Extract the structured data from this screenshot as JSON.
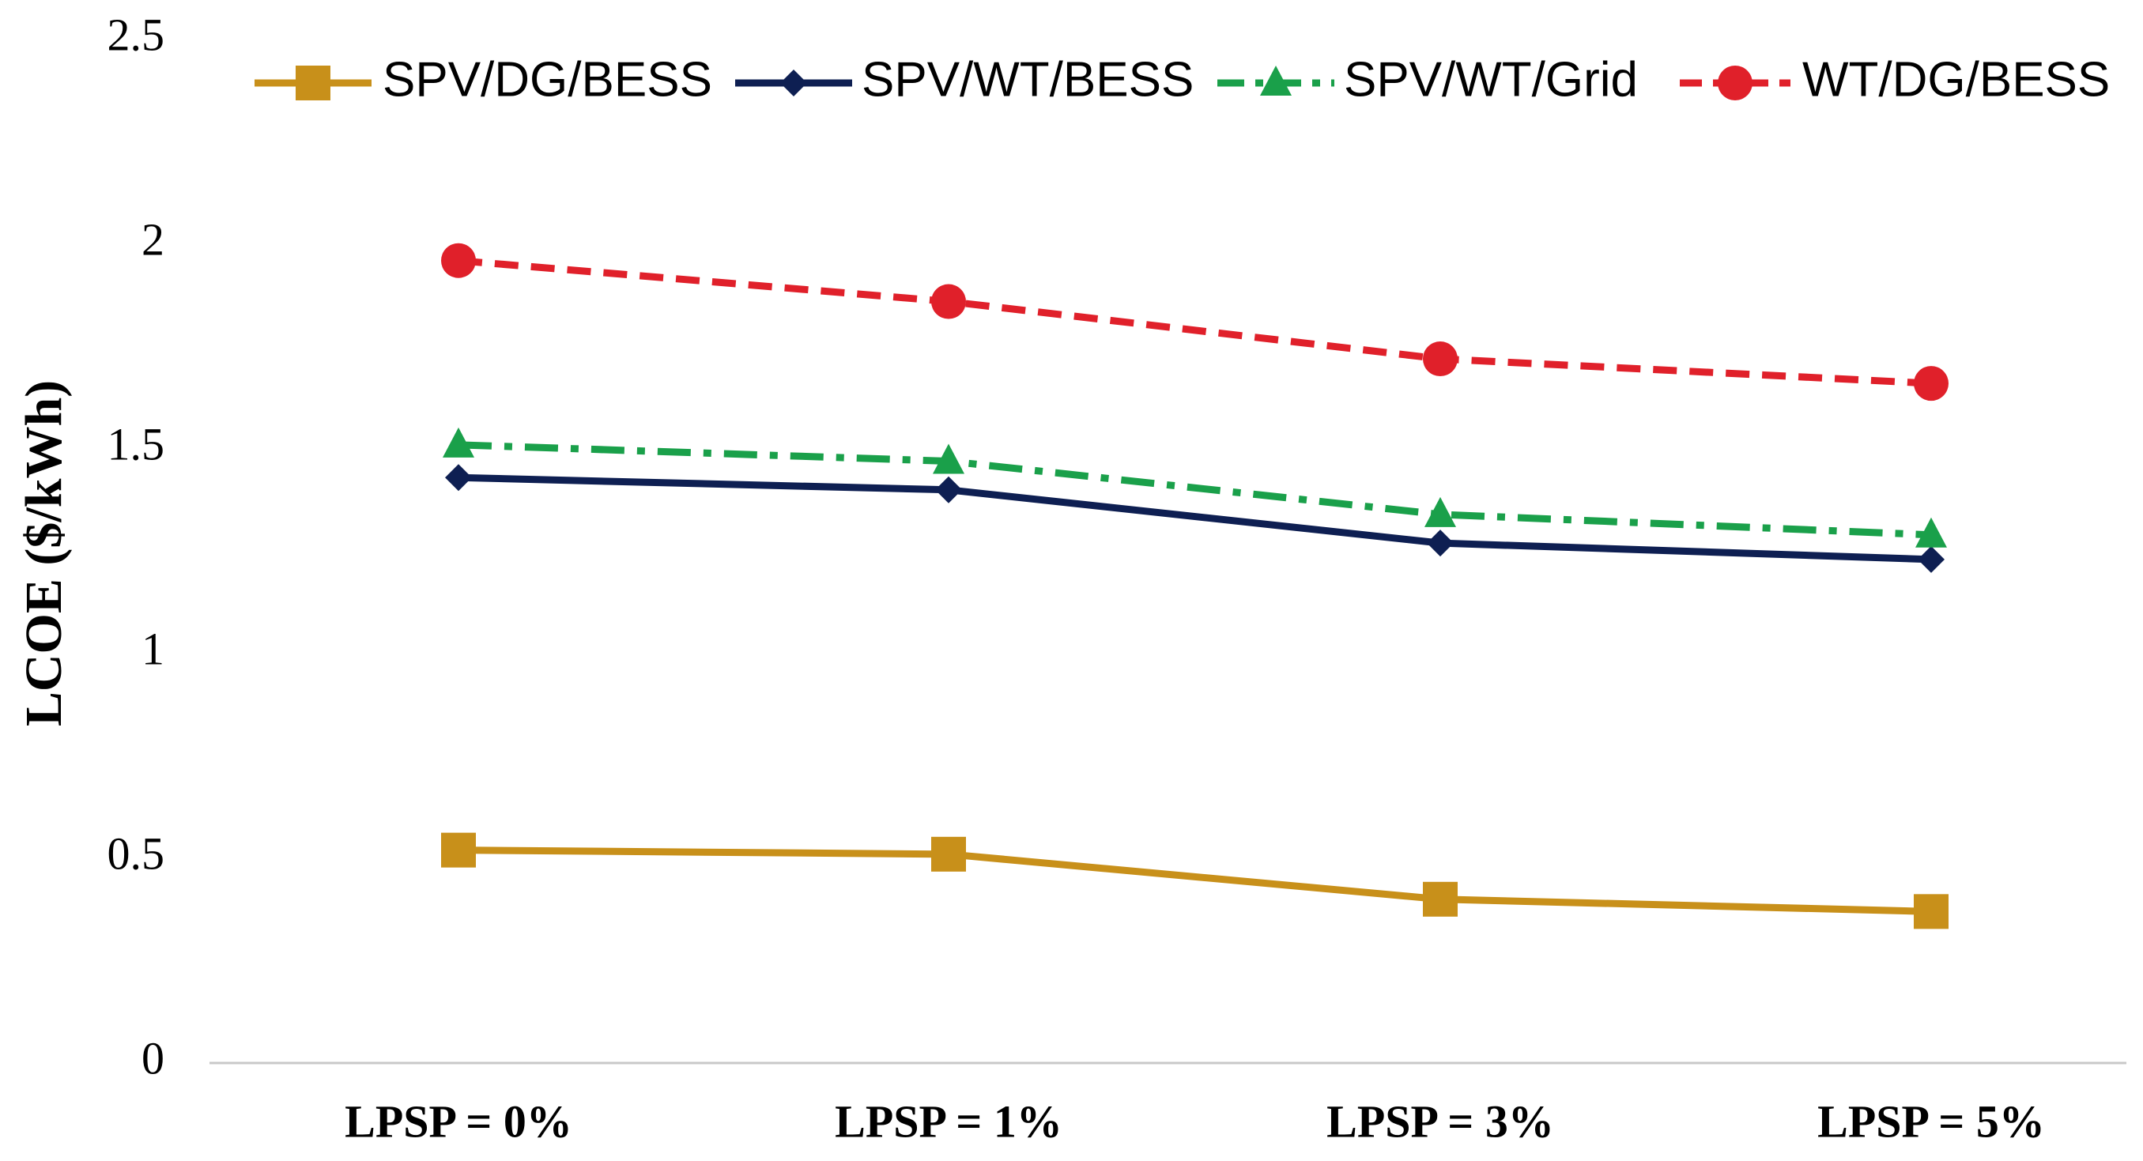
{
  "chart_data": {
    "type": "line",
    "title": "",
    "xlabel": "",
    "ylabel": "LCOE ($/kWh)",
    "ylim": [
      0,
      2.5
    ],
    "yticks": [
      "0",
      "0.5",
      "1",
      "1.5",
      "2",
      "2.5"
    ],
    "categories": [
      "LPSP = 0%",
      "LPSP = 1%",
      "LPSP = 3%",
      "LPSP = 5%"
    ],
    "grid": false,
    "legend_position": "top",
    "series": [
      {
        "name": "SPV/DG/BESS",
        "values": [
          0.52,
          0.51,
          0.4,
          0.37
        ],
        "color": "#c8901a",
        "marker": "square",
        "dash": "solid"
      },
      {
        "name": "SPV/WT/BESS",
        "values": [
          1.43,
          1.4,
          1.27,
          1.23
        ],
        "color": "#0e1f52",
        "marker": "diamond",
        "dash": "solid"
      },
      {
        "name": "SPV/WT/Grid",
        "values": [
          1.51,
          1.47,
          1.34,
          1.29
        ],
        "color": "#1aa04a",
        "marker": "triangle",
        "dash": "dashdot"
      },
      {
        "name": "WT/DG/BESS",
        "values": [
          1.96,
          1.86,
          1.72,
          1.66
        ],
        "color": "#e0202a",
        "marker": "circle",
        "dash": "dashed"
      }
    ]
  }
}
